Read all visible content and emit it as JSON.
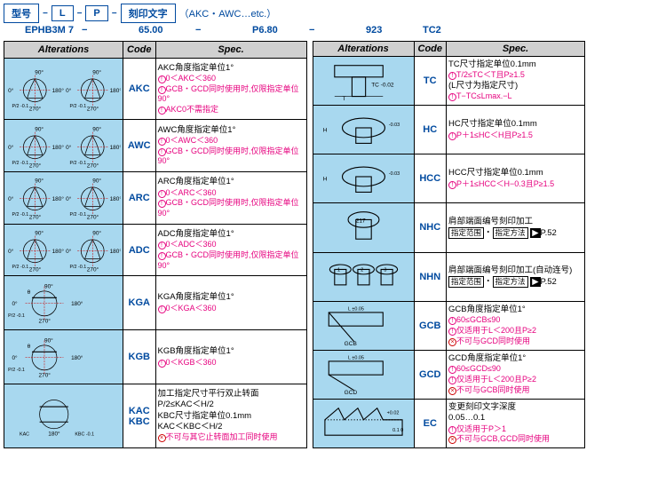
{
  "top": {
    "labels": [
      "型号",
      "L",
      "P",
      "刻印文字"
    ],
    "paren": "（AKC・AWC…etc.）",
    "example": [
      "EPHB3M 7",
      "65.00",
      "P6.80",
      "923",
      "TC2"
    ]
  },
  "headers": [
    "Alterations",
    "Code",
    "Spec."
  ],
  "left": [
    {
      "code": "AKC",
      "spec": [
        "AKC角度指定单位1°",
        "⊕0＜AKC＜360",
        "⊕GCB・GCD同时使用时,仅限指定单位90°",
        "⊕AKC0不需指定"
      ]
    },
    {
      "code": "AWC",
      "spec": [
        "AWC角度指定单位1°",
        "⊕0＜AWC＜360",
        "⊕GCB・GCD同时使用时,仅限指定单位90°"
      ]
    },
    {
      "code": "ARC",
      "spec": [
        "ARC角度指定单位1°",
        "⊕0＜ARC＜360",
        "⊕GCB・GCD同时使用时,仅限指定单位90°"
      ]
    },
    {
      "code": "ADC",
      "spec": [
        "ADC角度指定单位1°",
        "⊕0＜ADC＜360",
        "⊕GCB・GCD同时使用时,仅限指定单位90°"
      ]
    },
    {
      "code": "KGA",
      "spec": [
        "KGA角度指定单位1°",
        "⊕0＜KGA＜360"
      ]
    },
    {
      "code": "KGB",
      "spec": [
        "KGB角度指定单位1°",
        "⊕0＜KGB＜360"
      ]
    },
    {
      "code": "KAC KBC",
      "spec": [
        "加工指定尺寸平行双止转面",
        "P/2≤KAC＜H/2",
        "KBC尺寸指定单位0.1mm",
        "KAC＜KBC＜H/2",
        "⊗不可与其它止转面加工同时使用"
      ]
    }
  ],
  "right": [
    {
      "code": "TC",
      "spec": [
        "TC尺寸指定单位0.1mm",
        "⊕T/2≤TC＜T且P≥1.5",
        "(L尺寸为指定尺寸)",
        "⊕T−TC≤Lmax.−L"
      ]
    },
    {
      "code": "HC",
      "spec": [
        "HC尺寸指定单位0.1mm",
        "⊕P＋1≤HC＜H且P≥1.5"
      ]
    },
    {
      "code": "HCC",
      "spec": [
        "HCC尺寸指定单位0.1mm",
        "⊕P＋1≤HCC＜H−0.3且P≥1.5"
      ]
    },
    {
      "code": "NHC",
      "nhc": true,
      "spec": [
        "肩部端面编号刻印加工",
        "指定范围・指定方法 ▶P.52"
      ]
    },
    {
      "code": "NHN",
      "nhc": true,
      "spec": [
        "肩部端面编号刻印加工(自动连号)",
        "指定范围・指定方法 ▶P.52"
      ]
    },
    {
      "code": "GCB",
      "spec": [
        "GCB角度指定单位1°",
        "⊕60≤GCB≤90",
        "⊕仅适用于L＜200且P≥2",
        "⊗不可与GCD同时使用"
      ]
    },
    {
      "code": "GCD",
      "spec": [
        "GCD角度指定单位1°",
        "⊕60≤GCD≤90",
        "⊕仅适用于L＜200且P≥2",
        "⊗不可与GCB同时使用"
      ]
    },
    {
      "code": "EC",
      "spec": [
        "变更刻印文字深度",
        "0.05…0.1",
        "⊕仅适用于P＞1",
        "⊗不可与GCB,GCD同时使用"
      ]
    }
  ]
}
